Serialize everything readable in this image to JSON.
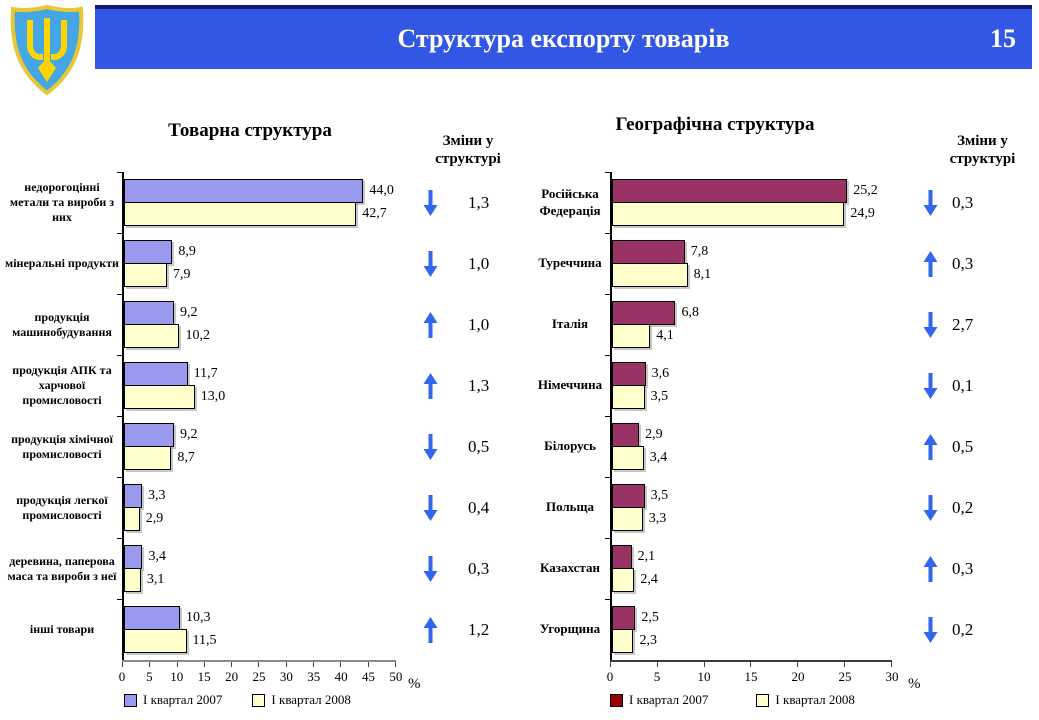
{
  "header": {
    "title": "Структура експорту товарів",
    "page_number": "15",
    "emblem": "ukraine-coat-of-arms"
  },
  "colors": {
    "header_bg": "#3357E5",
    "header_top_line": "#17177A",
    "arrow_blue": "#3366EE",
    "bar_2007_commodity": "#9999EE",
    "bar_2007_geographic": "#993366",
    "bar_2008": "#FFFFCC",
    "legend_2007_geographic_swatch": "#990000"
  },
  "chart_data": [
    {
      "type": "bar",
      "orientation": "horizontal",
      "title": "Товарна структура",
      "changes_header": "Зміни у структурі",
      "xlabel": "%",
      "xlim": [
        0,
        50
      ],
      "xticks": [
        "0",
        "5",
        "10",
        "15",
        "20",
        "25",
        "30",
        "35",
        "40",
        "45",
        "50"
      ],
      "legend": [
        "І квартал 2007",
        "І квартал 2008"
      ],
      "legend_position": "bottom",
      "grid": false,
      "series_colors": [
        "#9999EE",
        "#FFFFCC"
      ],
      "legend_colors": [
        "#9999EE",
        "#FFFFCC"
      ],
      "series": [
        {
          "name": "І квартал 2007",
          "values": [
            44.0,
            8.9,
            9.2,
            11.7,
            9.2,
            3.3,
            3.4,
            10.3
          ]
        },
        {
          "name": "І квартал 2008",
          "values": [
            42.7,
            7.9,
            10.2,
            13.0,
            8.7,
            2.9,
            3.1,
            11.5
          ]
        }
      ],
      "changes_numeric": [
        -1.3,
        -1.0,
        1.0,
        1.3,
        -0.5,
        -0.4,
        -0.3,
        1.2
      ],
      "rows": [
        {
          "label": "недорогоцінні метали та вироби з них",
          "v2007": "44,0",
          "v2008": "42,7",
          "change_dir": "down",
          "change": "1,3"
        },
        {
          "label": "мінеральні продукти",
          "v2007": "8,9",
          "v2008": "7,9",
          "change_dir": "down",
          "change": "1,0"
        },
        {
          "label": "продукція машинобудування",
          "v2007": "9,2",
          "v2008": "10,2",
          "change_dir": "up",
          "change": "1,0"
        },
        {
          "label": "продукція АПК та харчової промисловості",
          "v2007": "11,7",
          "v2008": "13,0",
          "change_dir": "up",
          "change": "1,3"
        },
        {
          "label": "продукція хімічної промисловості",
          "v2007": "9,2",
          "v2008": "8,7",
          "change_dir": "down",
          "change": "0,5"
        },
        {
          "label": "продукція легкої промисловості",
          "v2007": "3,3",
          "v2008": "2,9",
          "change_dir": "down",
          "change": "0,4"
        },
        {
          "label": "деревина, паперова маса та вироби з неї",
          "v2007": "3,4",
          "v2008": "3,1",
          "change_dir": "down",
          "change": "0,3"
        },
        {
          "label": "інші товари",
          "v2007": "10,3",
          "v2008": "11,5",
          "change_dir": "up",
          "change": "1,2"
        }
      ]
    },
    {
      "type": "bar",
      "orientation": "horizontal",
      "title": "Географічна структура",
      "changes_header": "Зміни у структурі",
      "xlabel": "%",
      "xlim": [
        0,
        30
      ],
      "xticks": [
        "0",
        "5",
        "10",
        "15",
        "20",
        "25",
        "30"
      ],
      "legend": [
        "І квартал 2007",
        "І квартал 2008"
      ],
      "legend_position": "bottom",
      "grid": false,
      "series_colors": [
        "#993366",
        "#FFFFCC"
      ],
      "legend_colors": [
        "#990000",
        "#FFFFCC"
      ],
      "series": [
        {
          "name": "І квартал 2007",
          "values": [
            25.2,
            7.8,
            6.8,
            3.6,
            2.9,
            3.5,
            2.1,
            2.5
          ]
        },
        {
          "name": "І квартал 2008",
          "values": [
            24.9,
            8.1,
            4.1,
            3.5,
            3.4,
            3.3,
            2.4,
            2.3
          ]
        }
      ],
      "changes_numeric": [
        -0.3,
        0.3,
        -2.7,
        -0.1,
        0.5,
        -0.2,
        0.3,
        -0.2
      ],
      "rows": [
        {
          "label": "Російська Федерація",
          "v2007": "25,2",
          "v2008": "24,9",
          "change_dir": "down",
          "change": "0,3"
        },
        {
          "label": "Туреччина",
          "v2007": "7,8",
          "v2008": "8,1",
          "change_dir": "up",
          "change": "0,3"
        },
        {
          "label": "Італія",
          "v2007": "6,8",
          "v2008": "4,1",
          "change_dir": "down",
          "change": "2,7"
        },
        {
          "label": "Німеччина",
          "v2007": "3,6",
          "v2008": "3,5",
          "change_dir": "down",
          "change": "0,1"
        },
        {
          "label": "Білорусь",
          "v2007": "2,9",
          "v2008": "3,4",
          "change_dir": "up",
          "change": "0,5"
        },
        {
          "label": "Польща",
          "v2007": "3,5",
          "v2008": "3,3",
          "change_dir": "down",
          "change": "0,2"
        },
        {
          "label": "Казахстан",
          "v2007": "2,1",
          "v2008": "2,4",
          "change_dir": "up",
          "change": "0,3"
        },
        {
          "label": "Угорщина",
          "v2007": "2,5",
          "v2008": "2,3",
          "change_dir": "down",
          "change": "0,2"
        }
      ]
    }
  ]
}
